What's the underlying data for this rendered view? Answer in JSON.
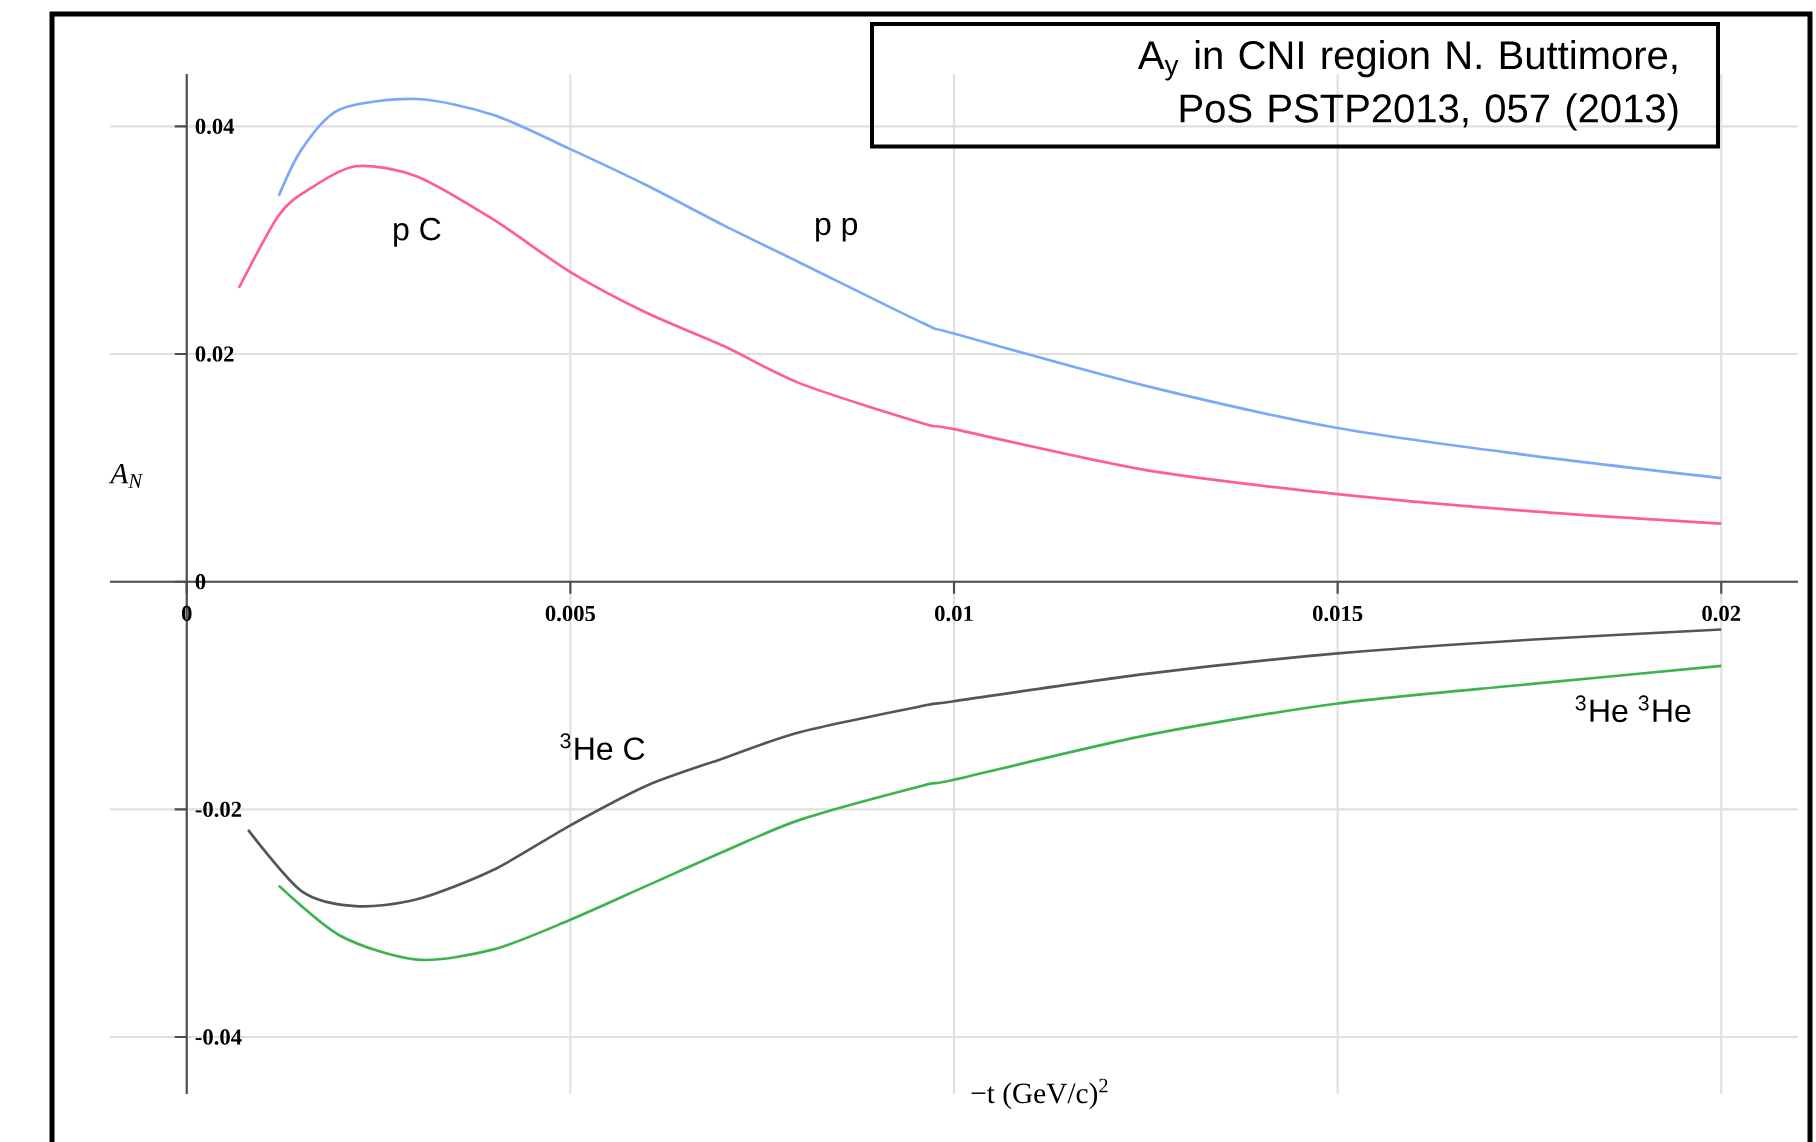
{
  "chart_data": {
    "type": "line",
    "xlabel": "−t  (GeV/c)$^{2}$",
    "ylabel": "A$_{N}$",
    "annotations": [
      "A$_{y}$ in CNI region N. Buttimore, PoS PSTP2013, 057 (2013)"
    ],
    "xlim": [
      -0.001,
      0.021
    ],
    "ylim": [
      -0.045,
      0.0446
    ],
    "xticks": [
      0,
      0.005,
      0.01,
      0.015,
      0.02
    ],
    "yticks": [
      -0.04,
      -0.02,
      0,
      0.02,
      0.04
    ],
    "grid": true,
    "series": [
      {
        "name": "p p",
        "color": "#7aaaf7",
        "x": [
          0.0012,
          0.0015,
          0.002,
          0.003,
          0.004,
          0.005,
          0.006,
          0.007,
          0.008,
          0.0096,
          0.01,
          0.0125,
          0.015,
          0.0175,
          0.02
        ],
        "values": [
          0.0339,
          0.038,
          0.0415,
          0.0424,
          0.041,
          0.038,
          0.0348,
          0.0313,
          0.028,
          0.0227,
          0.0218,
          0.0172,
          0.0135,
          0.0111,
          0.0091
        ]
      },
      {
        "name": "p C",
        "color": "#ff5c9a",
        "x": [
          0.00068,
          0.0012,
          0.0016,
          0.0022,
          0.003,
          0.004,
          0.005,
          0.006,
          0.007,
          0.008,
          0.0096,
          0.01,
          0.0125,
          0.015,
          0.0175,
          0.02
        ],
        "values": [
          0.0258,
          0.0322,
          0.0345,
          0.0365,
          0.0356,
          0.0318,
          0.0272,
          0.0236,
          0.0207,
          0.0174,
          0.0139,
          0.0134,
          0.0098,
          0.0077,
          0.0062,
          0.0051
        ]
      },
      {
        "name": "$^{3}$He C",
        "color": "#555555",
        "x": [
          0.0008,
          0.0015,
          0.0022,
          0.003,
          0.004,
          0.005,
          0.006,
          0.007,
          0.008,
          0.0096,
          0.01,
          0.0125,
          0.015,
          0.0175,
          0.02
        ],
        "values": [
          -0.0218,
          -0.0272,
          -0.0285,
          -0.0279,
          -0.0253,
          -0.0214,
          -0.0179,
          -0.0155,
          -0.0132,
          -0.0109,
          -0.0105,
          -0.0081,
          -0.0063,
          -0.0051,
          -0.0042
        ]
      },
      {
        "name": "$^{3}$He $^{3}$He",
        "color": "#3cb44b",
        "x": [
          0.0012,
          0.002,
          0.003,
          0.004,
          0.005,
          0.006,
          0.007,
          0.008,
          0.0096,
          0.01,
          0.0125,
          0.015,
          0.0175,
          0.02
        ],
        "values": [
          -0.0267,
          -0.0311,
          -0.0332,
          -0.0323,
          -0.0297,
          -0.0267,
          -0.0237,
          -0.0209,
          -0.0179,
          -0.0174,
          -0.0135,
          -0.0107,
          -0.009,
          -0.0074
        ]
      }
    ]
  }
}
